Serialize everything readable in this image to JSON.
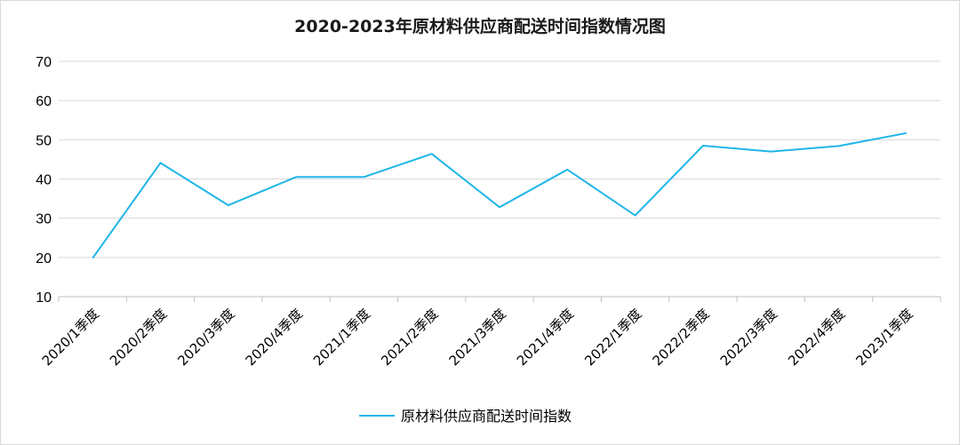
{
  "chart_data": {
    "type": "line",
    "title": "2020-2023年原材料供应商配送时间指数情况图",
    "categories": [
      "2020/1季度",
      "2020/2季度",
      "2020/3季度",
      "2020/4季度",
      "2021/1季度",
      "2021/2季度",
      "2021/3季度",
      "2021/4季度",
      "2022/1季度",
      "2022/2季度",
      "2022/3季度",
      "2022/4季度",
      "2023/1季度"
    ],
    "series": [
      {
        "name": "原材料供应商配送时间指数",
        "color": "#1fb6e8",
        "values": [
          19.8,
          44.1,
          33.3,
          40.5,
          40.5,
          46.4,
          32.8,
          42.4,
          30.7,
          48.5,
          47.0,
          48.4,
          51.7
        ]
      }
    ],
    "ylim": [
      10,
      70
    ],
    "yticks": [
      "10",
      "20",
      "30",
      "40",
      "50",
      "60",
      "70"
    ],
    "grid": true,
    "legend": "bottom",
    "xlabel": "",
    "ylabel": ""
  }
}
